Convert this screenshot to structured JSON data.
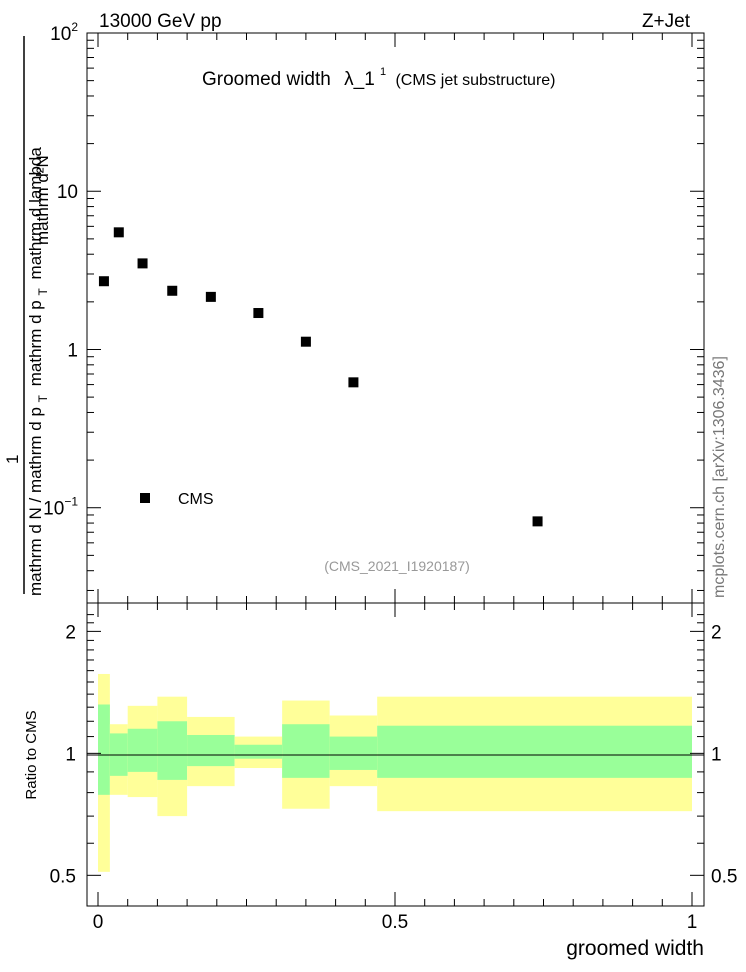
{
  "header": {
    "beam": "13000 GeV pp",
    "process": "Z+Jet"
  },
  "plot_title": {
    "main": "Groomed width",
    "lambda": "λ_1",
    "superscript": "1",
    "suffix": "(CMS jet substructure)"
  },
  "analysis_tag": "(CMS_2021_I1920187)",
  "side_label": "mcplots.cern.ch [arXiv:1306.3436]",
  "main_ylabel": {
    "one": "1",
    "numerator": "mathrm d²N",
    "denominator_left": "mathrm d N / mathrm d p",
    "sub_T1": "T",
    "denominator_mid": "mathrm d p",
    "sub_T2": "T",
    "denominator_right": "mathrm d lambda"
  },
  "ratio_ylabel": "Ratio to CMS",
  "xlabel": "groomed width",
  "legend": {
    "marker": "square",
    "label": "CMS"
  },
  "y_ticks_main": [
    {
      "base": "10",
      "exp": "2"
    },
    {
      "base": "10",
      "exp": ""
    },
    {
      "base": "1",
      "exp": ""
    },
    {
      "base": "10",
      "exp": "−1"
    }
  ],
  "y_ticks_ratio": [
    "2",
    "1",
    "0.5"
  ],
  "x_ticks": [
    "0",
    "0.5",
    "1"
  ],
  "colors": {
    "marker": "#000000",
    "band_outer": "#ffff99",
    "band_inner": "#99ff99",
    "tag_text": "#999999",
    "side_text": "#777777"
  },
  "chart_data": {
    "type": "scatter",
    "x_range": [
      0,
      1
    ],
    "y_range_log": [
      0.025,
      100
    ],
    "y_scale": "log",
    "series": [
      {
        "name": "CMS",
        "x": [
          0.01,
          0.035,
          0.075,
          0.125,
          0.19,
          0.27,
          0.35,
          0.43,
          0.74
        ],
        "y": [
          2.7,
          5.5,
          3.5,
          2.35,
          2.15,
          1.7,
          1.12,
          0.62,
          0.082
        ]
      }
    ],
    "ratio": {
      "ylabel": "Ratio to CMS",
      "y_scale": "log",
      "y_range": [
        0.42,
        2.35
      ],
      "bins": [
        {
          "x0": 0.0,
          "x1": 0.02,
          "inner_lo": 0.79,
          "inner_hi": 1.32,
          "outer_lo": 0.51,
          "outer_hi": 1.57
        },
        {
          "x0": 0.02,
          "x1": 0.05,
          "inner_lo": 0.88,
          "inner_hi": 1.12,
          "outer_lo": 0.79,
          "outer_hi": 1.18
        },
        {
          "x0": 0.05,
          "x1": 0.1,
          "inner_lo": 0.9,
          "inner_hi": 1.15,
          "outer_lo": 0.78,
          "outer_hi": 1.31
        },
        {
          "x0": 0.1,
          "x1": 0.15,
          "inner_lo": 0.86,
          "inner_hi": 1.2,
          "outer_lo": 0.7,
          "outer_hi": 1.38
        },
        {
          "x0": 0.15,
          "x1": 0.23,
          "inner_lo": 0.93,
          "inner_hi": 1.11,
          "outer_lo": 0.83,
          "outer_hi": 1.23
        },
        {
          "x0": 0.23,
          "x1": 0.31,
          "inner_lo": 0.97,
          "inner_hi": 1.05,
          "outer_lo": 0.92,
          "outer_hi": 1.1
        },
        {
          "x0": 0.31,
          "x1": 0.39,
          "inner_lo": 0.87,
          "inner_hi": 1.18,
          "outer_lo": 0.73,
          "outer_hi": 1.35
        },
        {
          "x0": 0.39,
          "x1": 0.47,
          "inner_lo": 0.91,
          "inner_hi": 1.1,
          "outer_lo": 0.83,
          "outer_hi": 1.24
        },
        {
          "x0": 0.47,
          "x1": 1.0,
          "inner_lo": 0.87,
          "inner_hi": 1.17,
          "outer_lo": 0.72,
          "outer_hi": 1.38
        }
      ]
    }
  }
}
